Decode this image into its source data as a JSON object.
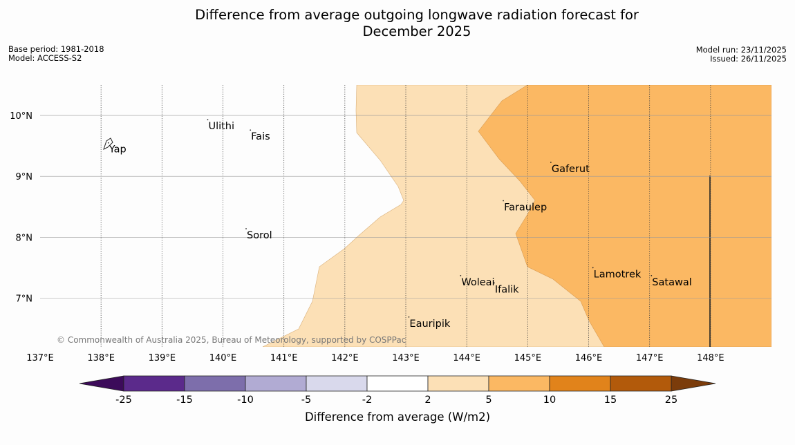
{
  "title": {
    "line1": "Difference from average outgoing longwave radiation forecast for",
    "line2": "December 2025"
  },
  "meta": {
    "base_period": "Base period: 1981-2018",
    "model": "Model: ACCESS-S2",
    "model_run": "Model run: 23/11/2025",
    "issued": "Issued: 26/11/2025"
  },
  "map": {
    "lon_range": [
      137,
      149
    ],
    "lat_range": [
      6.2,
      10.5
    ],
    "lon_ticks": [
      "137°E",
      "138°E",
      "139°E",
      "140°E",
      "141°E",
      "142°E",
      "143°E",
      "144°E",
      "145°E",
      "146°E",
      "147°E",
      "148°E"
    ],
    "lat_ticks": [
      "10°N",
      "9°N",
      "8°N",
      "7°N"
    ],
    "places": [
      {
        "name": "Ulithi",
        "lon": 139.75,
        "lat": 9.93
      },
      {
        "name": "Fais",
        "lon": 140.45,
        "lat": 9.76
      },
      {
        "name": "Yap",
        "lon": 138.12,
        "lat": 9.55
      },
      {
        "name": "Gaferut",
        "lon": 145.38,
        "lat": 9.23
      },
      {
        "name": "Faraulep",
        "lon": 144.6,
        "lat": 8.6
      },
      {
        "name": "Sorol",
        "lon": 140.38,
        "lat": 8.14
      },
      {
        "name": "Lamotrek",
        "lon": 146.07,
        "lat": 7.5
      },
      {
        "name": "Woleai",
        "lon": 143.9,
        "lat": 7.37
      },
      {
        "name": "Ifalik",
        "lon": 144.45,
        "lat": 7.25
      },
      {
        "name": "Satawal",
        "lon": 147.03,
        "lat": 7.37
      },
      {
        "name": "Eauripik",
        "lon": 143.05,
        "lat": 6.69
      }
    ],
    "copyright": "© Commonwealth of Australia 2025, Bureau of Meteorology, supported by COSPPac"
  },
  "colorbar": {
    "label": "Difference from average (W/m2)",
    "ticks": [
      "-25",
      "-15",
      "-10",
      "-5",
      "-2",
      "2",
      "5",
      "10",
      "15",
      "25"
    ],
    "colors": [
      "#5b2a8b",
      "#7d6eab",
      "#b1abd3",
      "#d9d9ec",
      "#ffffff",
      "#fce0b6",
      "#fbb863",
      "#e1831b",
      "#b25a0b"
    ],
    "under_color": "#3c0b5a",
    "over_color": "#7b3c0b"
  },
  "colors": {
    "band_2_5": "#fce0b6",
    "band_5_10": "#fbb863",
    "background": "#fdfdfd"
  }
}
